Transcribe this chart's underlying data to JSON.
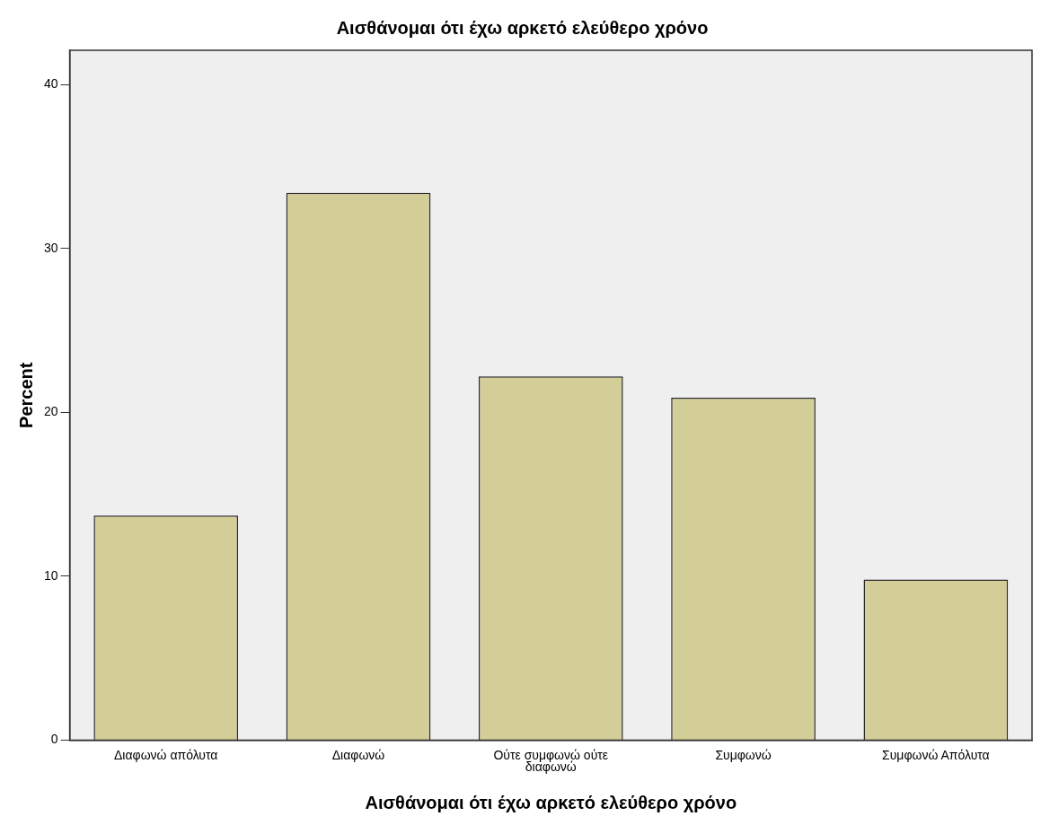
{
  "chart_data": {
    "type": "bar",
    "title": "Αισθάνομαι ότι έχω αρκετό ελεύθερο χρόνο",
    "xlabel": "Αισθάνομαι ότι έχω αρκετό ελεύθερο χρόνο",
    "ylabel": "Percent",
    "categories": [
      "Διαφωνώ απόλυτα",
      "Διαφωνώ",
      "Ούτε συμφωνώ ούτε διαφωνώ",
      "Συμφωνώ",
      "Συμφωνώ Απόλυτα"
    ],
    "values": [
      13.7,
      33.4,
      22.2,
      20.9,
      9.8
    ],
    "color": "#d3cd98",
    "ylim": [
      0,
      42.1
    ],
    "yticks": [
      0,
      10,
      20,
      30,
      40
    ],
    "grid": false,
    "legend": false
  }
}
